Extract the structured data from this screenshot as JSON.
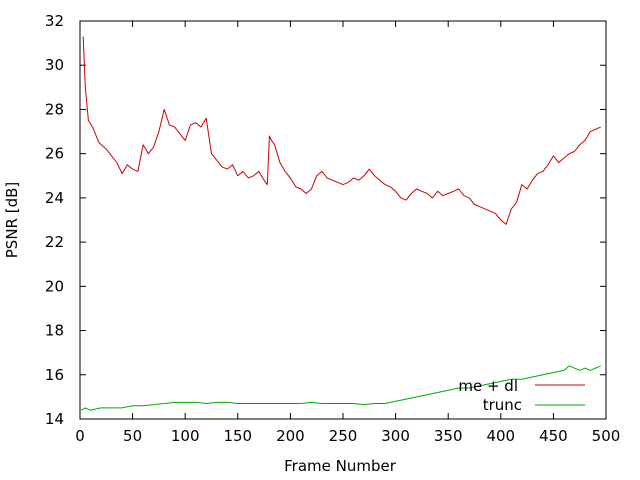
{
  "chart_data": {
    "type": "line",
    "title": "",
    "xlabel": "Frame Number",
    "ylabel": "PSNR [dB]",
    "xlim": [
      0,
      500
    ],
    "ylim": [
      14,
      32
    ],
    "xticks": [
      0,
      50,
      100,
      150,
      200,
      250,
      300,
      350,
      400,
      450,
      500
    ],
    "yticks": [
      14,
      16,
      18,
      20,
      22,
      24,
      26,
      28,
      30,
      32
    ],
    "grid": false,
    "legend_position": "bottom-right",
    "series": [
      {
        "name": "me + dl",
        "color": "#cc0000",
        "x": [
          3,
          5,
          8,
          12,
          18,
          25,
          30,
          35,
          40,
          45,
          50,
          55,
          60,
          65,
          70,
          75,
          80,
          85,
          90,
          95,
          100,
          105,
          110,
          115,
          120,
          125,
          130,
          135,
          140,
          145,
          150,
          155,
          160,
          165,
          170,
          175,
          178,
          180,
          182,
          185,
          190,
          195,
          200,
          205,
          210,
          215,
          220,
          225,
          230,
          235,
          240,
          245,
          250,
          255,
          260,
          265,
          270,
          275,
          280,
          285,
          290,
          295,
          300,
          305,
          310,
          315,
          320,
          325,
          330,
          335,
          340,
          345,
          350,
          355,
          360,
          365,
          370,
          375,
          380,
          385,
          390,
          395,
          400,
          405,
          410,
          415,
          420,
          425,
          430,
          435,
          440,
          445,
          450,
          455,
          460,
          465,
          470,
          475,
          480,
          485,
          490,
          495
        ],
        "y": [
          31.3,
          29.0,
          27.5,
          27.2,
          26.5,
          26.2,
          25.9,
          25.6,
          25.1,
          25.5,
          25.3,
          25.2,
          26.4,
          26.0,
          26.3,
          27.0,
          28.0,
          27.3,
          27.2,
          26.9,
          26.6,
          27.3,
          27.4,
          27.2,
          27.6,
          26.0,
          25.7,
          25.4,
          25.3,
          25.5,
          25.0,
          25.2,
          24.9,
          25.0,
          25.2,
          24.8,
          24.6,
          26.8,
          26.6,
          26.4,
          25.6,
          25.2,
          24.9,
          24.5,
          24.4,
          24.2,
          24.4,
          25.0,
          25.2,
          24.9,
          24.8,
          24.7,
          24.6,
          24.7,
          24.9,
          24.8,
          25.0,
          25.3,
          25.0,
          24.8,
          24.6,
          24.5,
          24.3,
          24.0,
          23.9,
          24.2,
          24.4,
          24.3,
          24.2,
          24.0,
          24.3,
          24.1,
          24.2,
          24.3,
          24.4,
          24.1,
          24.0,
          23.7,
          23.6,
          23.5,
          23.4,
          23.3,
          23.0,
          22.8,
          23.5,
          23.8,
          24.6,
          24.4,
          24.8,
          25.1,
          25.2,
          25.5,
          25.9,
          25.6,
          25.8,
          26.0,
          26.1,
          26.4,
          26.6,
          27.0,
          27.1,
          27.2
        ]
      },
      {
        "name": "trunc",
        "color": "#00aa00",
        "x": [
          1,
          5,
          10,
          20,
          30,
          40,
          50,
          60,
          70,
          80,
          90,
          100,
          110,
          120,
          130,
          140,
          150,
          160,
          170,
          180,
          190,
          200,
          210,
          220,
          230,
          240,
          250,
          260,
          270,
          280,
          290,
          300,
          310,
          320,
          330,
          340,
          350,
          360,
          370,
          380,
          390,
          400,
          410,
          420,
          430,
          440,
          450,
          460,
          465,
          470,
          475,
          480,
          485,
          490,
          495
        ],
        "y": [
          14.4,
          14.5,
          14.4,
          14.5,
          14.5,
          14.5,
          14.6,
          14.6,
          14.65,
          14.7,
          14.75,
          14.75,
          14.75,
          14.7,
          14.75,
          14.75,
          14.7,
          14.7,
          14.7,
          14.7,
          14.7,
          14.7,
          14.7,
          14.75,
          14.7,
          14.7,
          14.7,
          14.7,
          14.65,
          14.7,
          14.7,
          14.8,
          14.9,
          15.0,
          15.1,
          15.2,
          15.3,
          15.4,
          15.4,
          15.5,
          15.6,
          15.7,
          15.8,
          15.8,
          15.9,
          16.0,
          16.1,
          16.2,
          16.4,
          16.3,
          16.2,
          16.3,
          16.2,
          16.3,
          16.4
        ]
      }
    ]
  }
}
